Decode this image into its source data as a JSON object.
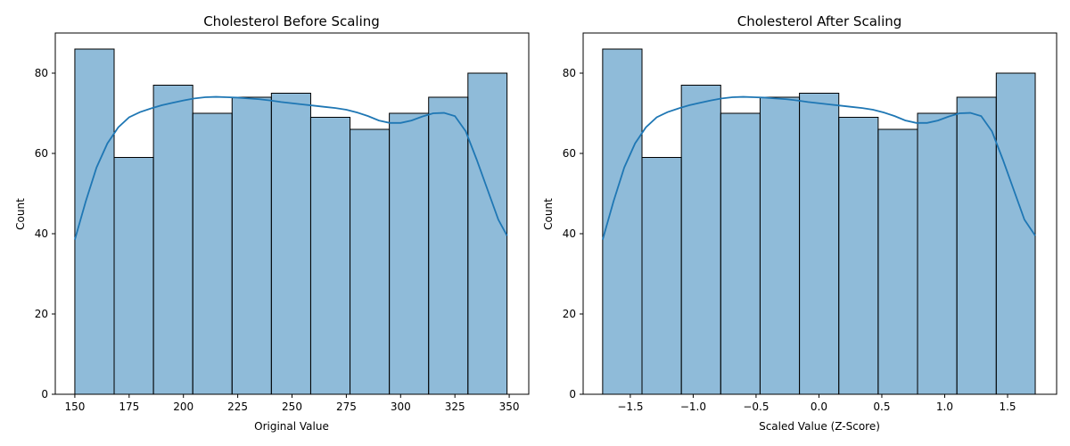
{
  "chart_data": [
    {
      "type": "bar",
      "title": "Cholesterol Before Scaling",
      "xlabel": "Original Value",
      "ylabel": "Count",
      "bin_edges": [
        150,
        168.1,
        186.2,
        204.3,
        222.4,
        240.5,
        258.6,
        276.7,
        294.8,
        312.9,
        331,
        349
      ],
      "values": [
        86,
        59,
        77,
        70,
        74,
        75,
        69,
        66,
        70,
        74,
        80
      ],
      "xlim": [
        141,
        359
      ],
      "ylim": [
        0,
        90
      ],
      "xticks": [
        150,
        175,
        200,
        225,
        250,
        275,
        300,
        325,
        350
      ],
      "xtick_labels": [
        "150",
        "175",
        "200",
        "225",
        "250",
        "275",
        "300",
        "325",
        "350"
      ],
      "yticks": [
        0,
        20,
        40,
        60,
        80
      ],
      "ytick_labels": [
        "0",
        "20",
        "40",
        "60",
        "80"
      ],
      "kde": {
        "x": [
          150,
          155,
          160,
          165,
          170,
          175,
          180,
          185,
          190,
          195,
          200,
          205,
          210,
          215,
          220,
          225,
          230,
          235,
          240,
          245,
          250,
          255,
          260,
          265,
          270,
          275,
          280,
          285,
          290,
          295,
          300,
          305,
          310,
          315,
          320,
          325,
          330,
          335,
          340,
          345,
          349
        ],
        "y": [
          38.5,
          48,
          56.5,
          62.5,
          66.5,
          69,
          70.3,
          71.2,
          72,
          72.6,
          73.2,
          73.7,
          74,
          74.1,
          74,
          73.9,
          73.7,
          73.5,
          73.2,
          72.8,
          72.5,
          72.2,
          71.9,
          71.6,
          71.3,
          70.9,
          70.2,
          69.3,
          68.2,
          67.6,
          67.6,
          68.2,
          69.2,
          70,
          70.1,
          69.3,
          65.5,
          58.5,
          51,
          43.5,
          39.5
        ]
      },
      "color": "#1f77b4"
    },
    {
      "type": "bar",
      "title": "Cholesterol After Scaling",
      "xlabel": "Scaled Value (Z-Score)",
      "ylabel": "Count",
      "bin_edges": [
        -1.72,
        -1.407,
        -1.094,
        -0.781,
        -0.468,
        -0.155,
        0.158,
        0.471,
        0.784,
        1.097,
        1.41,
        1.72
      ],
      "values": [
        86,
        59,
        77,
        70,
        74,
        75,
        69,
        66,
        70,
        74,
        80
      ],
      "xlim": [
        -1.875,
        1.89
      ],
      "ylim": [
        0,
        90
      ],
      "xticks": [
        -1.5,
        -1.0,
        -0.5,
        0.0,
        0.5,
        1.0,
        1.5
      ],
      "xtick_labels": [
        "−1.5",
        "−1.0",
        "−0.5",
        "0.0",
        "0.5",
        "1.0",
        "1.5"
      ],
      "yticks": [
        0,
        20,
        40,
        60,
        80
      ],
      "ytick_labels": [
        "0",
        "20",
        "40",
        "60",
        "80"
      ],
      "kde": {
        "x": [
          -1.72,
          -1.634,
          -1.548,
          -1.462,
          -1.376,
          -1.29,
          -1.204,
          -1.118,
          -1.032,
          -0.946,
          -0.86,
          -0.774,
          -0.688,
          -0.602,
          -0.516,
          -0.43,
          -0.344,
          -0.258,
          -0.172,
          -0.086,
          0.0,
          0.086,
          0.172,
          0.258,
          0.344,
          0.43,
          0.516,
          0.602,
          0.688,
          0.774,
          0.86,
          0.946,
          1.032,
          1.118,
          1.204,
          1.29,
          1.376,
          1.462,
          1.548,
          1.634,
          1.72
        ],
        "y": [
          38.5,
          48,
          56.5,
          62.5,
          66.5,
          69,
          70.3,
          71.2,
          72,
          72.6,
          73.2,
          73.7,
          74,
          74.1,
          74,
          73.9,
          73.7,
          73.5,
          73.2,
          72.8,
          72.5,
          72.2,
          71.9,
          71.6,
          71.3,
          70.9,
          70.2,
          69.3,
          68.2,
          67.6,
          67.6,
          68.2,
          69.2,
          70,
          70.1,
          69.3,
          65.5,
          58.5,
          51,
          43.5,
          39.5
        ]
      },
      "color": "#1f77b4"
    }
  ]
}
